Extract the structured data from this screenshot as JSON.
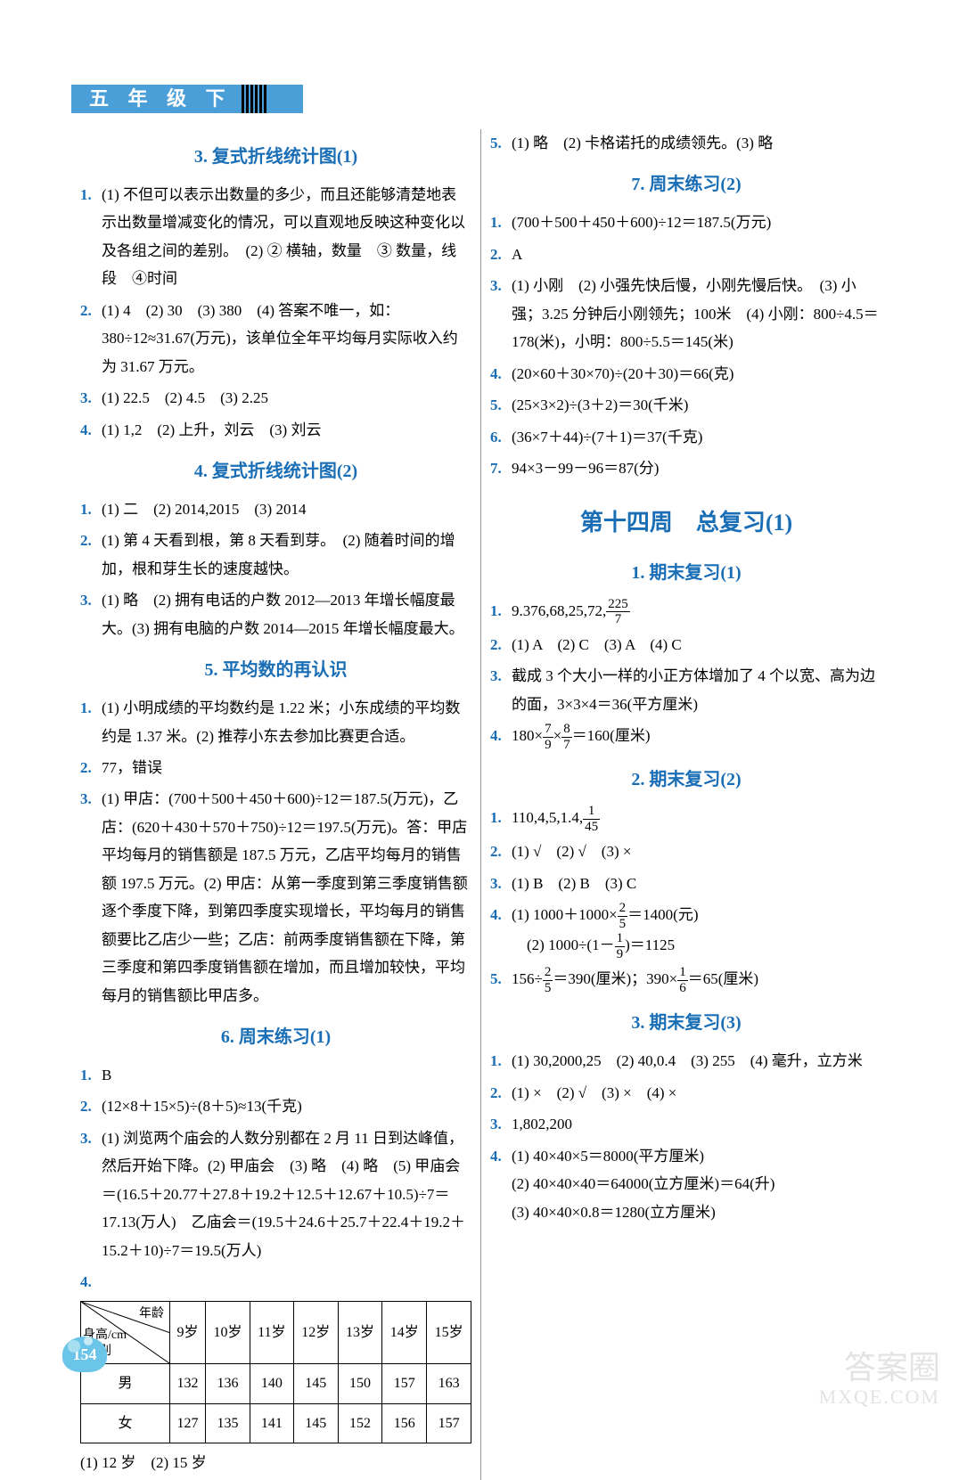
{
  "header": {
    "grade": "五 年 级 下"
  },
  "left": {
    "sections": [
      {
        "title": "3. 复式折线统计图(1)",
        "items": [
          {
            "n": "1.",
            "t": "(1) 不但可以表示出数量的多少，而且还能够清楚地表示出数量增减变化的情况，可以直观地反映这种变化以及各组之间的差别。　(2) ② 横轴，数量　③ 数量，线段　④时间"
          },
          {
            "n": "2.",
            "t": "(1) 4　(2) 30　(3) 380　(4) 答案不唯一，如：380÷12≈31.67(万元)，该单位全年平均每月实际收入约为 31.67 万元。"
          },
          {
            "n": "3.",
            "t": "(1) 22.5　(2) 4.5　(3) 2.25"
          },
          {
            "n": "4.",
            "t": "(1) 1,2　(2) 上升，刘云　(3) 刘云"
          }
        ]
      },
      {
        "title": "4. 复式折线统计图(2)",
        "items": [
          {
            "n": "1.",
            "t": "(1) 二　(2) 2014,2015　(3) 2014"
          },
          {
            "n": "2.",
            "t": "(1) 第 4 天看到根，第 8 天看到芽。　(2) 随着时间的增加，根和芽生长的速度越快。"
          },
          {
            "n": "3.",
            "t": "(1) 略　(2) 拥有电话的户数 2012—2013 年增长幅度最大。(3) 拥有电脑的户数 2014—2015 年增长幅度最大。"
          }
        ]
      },
      {
        "title": "5. 平均数的再认识",
        "items": [
          {
            "n": "1.",
            "t": "(1) 小明成绩的平均数约是 1.22 米；小东成绩的平均数约是 1.37 米。(2) 推荐小东去参加比赛更合适。"
          },
          {
            "n": "2.",
            "t": "77，错误"
          },
          {
            "n": "3.",
            "t": "(1) 甲店：(700＋500＋450＋600)÷12＝187.5(万元)，乙店：(620＋430＋570＋750)÷12＝197.5(万元)。答：甲店平均每月的销售额是 187.5 万元，乙店平均每月的销售额 197.5 万元。(2) 甲店：从第一季度到第三季度销售额逐个季度下降，到第四季度实现增长，平均每月的销售额要比乙店少一些；乙店：前两季度销售额在下降，第三季度和第四季度销售额在增加，而且增加较快，平均每月的销售额比甲店多。"
          }
        ]
      },
      {
        "title": "6. 周末练习(1)",
        "items": [
          {
            "n": "1.",
            "t": "B"
          },
          {
            "n": "2.",
            "t": "(12×8＋15×5)÷(8＋5)≈13(千克)"
          },
          {
            "n": "3.",
            "t": "(1) 浏览两个庙会的人数分别都在 2 月 11 日到达峰值，然后开始下降。(2) 甲庙会　(3) 略　(4) 略　(5) 甲庙会＝(16.5＋20.77＋27.8＋19.2＋12.5＋12.67＋10.5)÷7＝17.13(万人)　乙庙会＝(19.5＋24.6＋25.7＋22.4＋19.2＋15.2＋10)÷7＝19.5(万人)"
          },
          {
            "n": "4.",
            "t": ""
          }
        ]
      }
    ],
    "table": {
      "diag_labels": [
        "年龄",
        "身高/cm",
        "性别"
      ],
      "cols": [
        "9岁",
        "10岁",
        "11岁",
        "12岁",
        "13岁",
        "14岁",
        "15岁"
      ],
      "rows": [
        {
          "label": "男",
          "vals": [
            "132",
            "136",
            "140",
            "145",
            "150",
            "157",
            "163"
          ]
        },
        {
          "label": "女",
          "vals": [
            "127",
            "135",
            "141",
            "145",
            "152",
            "156",
            "157"
          ]
        }
      ],
      "footer": "(1) 12 岁　(2) 15 岁"
    }
  },
  "right": {
    "top_items": [
      {
        "n": "5.",
        "t": "(1) 略　(2) 卡格诺托的成绩领先。(3) 略"
      }
    ],
    "sections": [
      {
        "title": "7. 周末练习(2)",
        "items": [
          {
            "n": "1.",
            "t": "(700＋500＋450＋600)÷12＝187.5(万元)"
          },
          {
            "n": "2.",
            "t": "A"
          },
          {
            "n": "3.",
            "t": "(1) 小刚　(2) 小强先快后慢，小刚先慢后快。　(3) 小强；3.25 分钟后小刚领先；100米　(4) 小刚：800÷4.5＝178(米)，小明：800÷5.5＝145(米)"
          },
          {
            "n": "4.",
            "t": "(20×60＋30×70)÷(20＋30)＝66(克)"
          },
          {
            "n": "5.",
            "t": "(25×3×2)÷(3＋2)＝30(千米)"
          },
          {
            "n": "6.",
            "t": "(36×7＋44)÷(7＋1)＝37(千克)"
          },
          {
            "n": "7.",
            "t": "94×3－99－96＝87(分)"
          }
        ]
      }
    ],
    "chapter": "第十四周　总复习(1)",
    "sections2": [
      {
        "title": "1. 期末复习(1)",
        "items": [
          {
            "n": "1.",
            "html": "9.376,68,25,72,<span class='frac'><span class='top'>225</span><span class='bot'>7</span></span>"
          },
          {
            "n": "2.",
            "t": "(1) A　(2) C　(3) A　(4) C"
          },
          {
            "n": "3.",
            "t": "截成 3 个大小一样的小正方体增加了 4 个以宽、高为边的面，3×3×4＝36(平方厘米)"
          },
          {
            "n": "4.",
            "html": "180×<span class='frac'><span class='top'>7</span><span class='bot'>9</span></span>×<span class='frac'><span class='top'>8</span><span class='bot'>7</span></span>＝160(厘米)"
          }
        ]
      },
      {
        "title": "2. 期末复习(2)",
        "items": [
          {
            "n": "1.",
            "html": "110,4,5,1.4,<span class='frac'><span class='top'>1</span><span class='bot'>45</span></span>"
          },
          {
            "n": "2.",
            "t": "(1) √　(2) √　(3) ×"
          },
          {
            "n": "3.",
            "t": "(1) B　(2) B　(3) C"
          },
          {
            "n": "4.",
            "html": "(1) 1000＋1000×<span class='frac'><span class='top'>2</span><span class='bot'>5</span></span>＝1400(元)<br>　(2) 1000÷(1－<span class='frac'><span class='top'>1</span><span class='bot'>9</span></span>)＝1125"
          },
          {
            "n": "5.",
            "html": "156÷<span class='frac'><span class='top'>2</span><span class='bot'>5</span></span>＝390(厘米)；390×<span class='frac'><span class='top'>1</span><span class='bot'>6</span></span>＝65(厘米)"
          }
        ]
      },
      {
        "title": "3. 期末复习(3)",
        "items": [
          {
            "n": "1.",
            "t": "(1) 30,2000,25　(2) 40,0.4　(3) 255　(4) 毫升，立方米"
          },
          {
            "n": "2.",
            "t": "(1) ×　(2) √　(3) ×　(4) ×"
          },
          {
            "n": "3.",
            "t": "1,802,200"
          },
          {
            "n": "4.",
            "t": "(1) 40×40×5＝8000(平方厘米)\n(2) 40×40×40＝64000(立方厘米)＝64(升)\n(3) 40×40×0.8＝1280(立方厘米)"
          }
        ]
      }
    ]
  },
  "page_number": "154",
  "watermark": {
    "line1": "答案圈",
    "line2": "MXQE.COM"
  }
}
